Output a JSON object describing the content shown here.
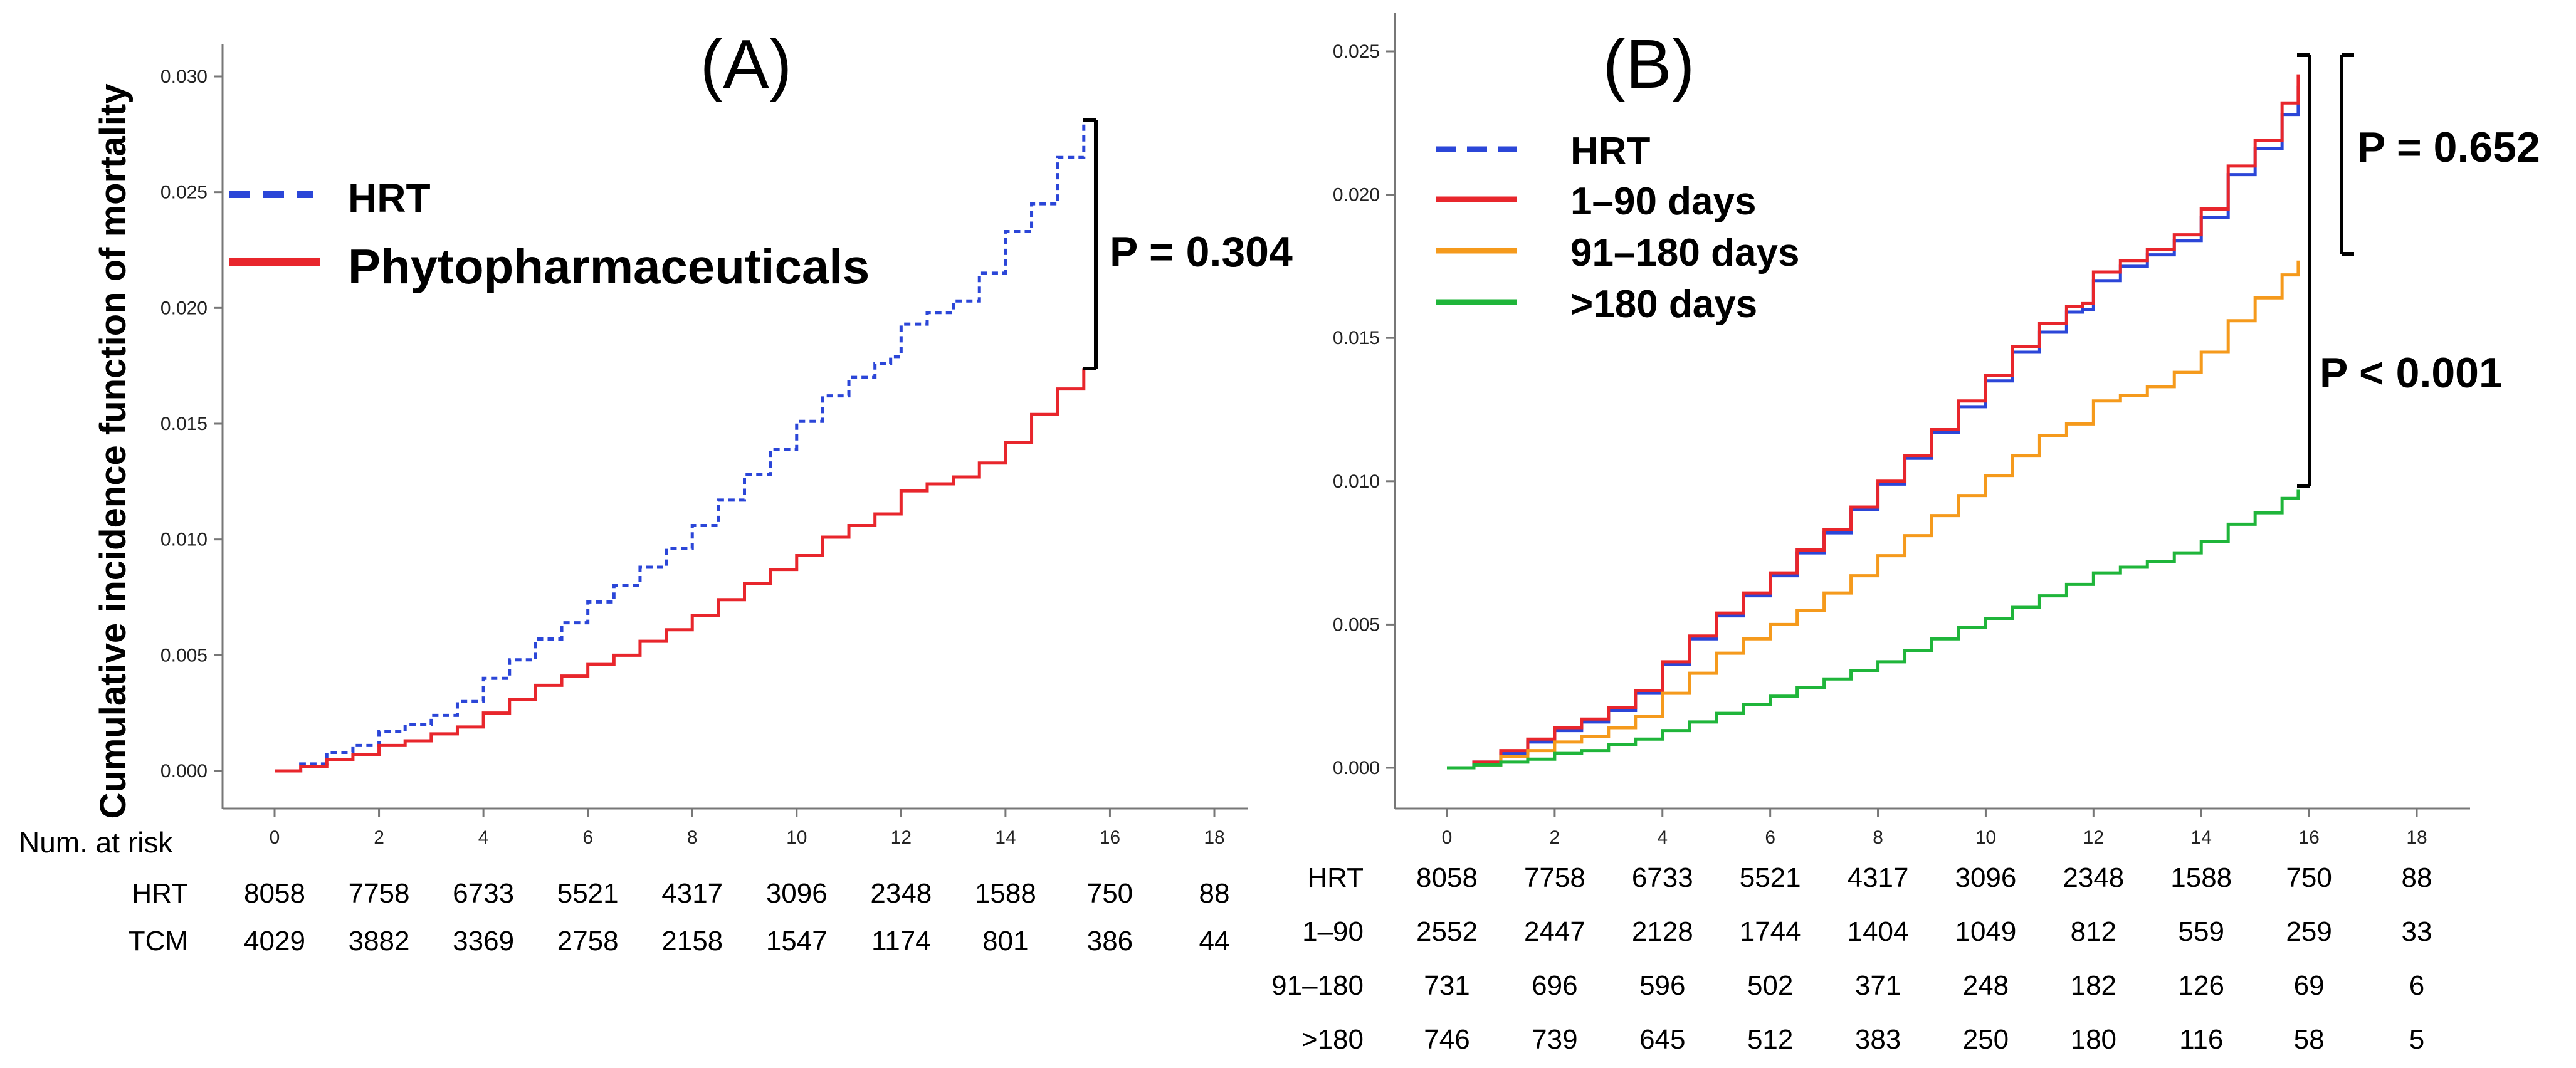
{
  "chart_data": [
    {
      "type": "line",
      "panel_label": "(A)",
      "title": "",
      "xlabel": "",
      "ylabel": "Cumulative incidence function of mortality",
      "xlim": [
        0,
        18
      ],
      "ylim": [
        0,
        0.03
      ],
      "x_ticks": [
        "0",
        "2",
        "4",
        "6",
        "8",
        "10",
        "12",
        "14",
        "16",
        "18"
      ],
      "y_ticks": [
        "0.000",
        "0.005",
        "0.010",
        "0.015",
        "0.020",
        "0.025",
        "0.030"
      ],
      "legend": {
        "position": "top-left"
      },
      "series": [
        {
          "name": "HRT",
          "color": "#2b46d8",
          "style": "dashed",
          "x": [
            0,
            0.5,
            1,
            1.5,
            2,
            2.5,
            3,
            3.5,
            4,
            4.5,
            5,
            5.5,
            6,
            6.5,
            7,
            7.5,
            8,
            8.5,
            9,
            9.5,
            10,
            10.5,
            11,
            11.5,
            11.8,
            12,
            12.5,
            13,
            13.5,
            14,
            14.5,
            15,
            15.5
          ],
          "y": [
            0,
            0.0003,
            0.0008,
            0.0011,
            0.0017,
            0.002,
            0.0024,
            0.003,
            0.004,
            0.0048,
            0.0057,
            0.0064,
            0.0073,
            0.008,
            0.0088,
            0.0096,
            0.0106,
            0.0117,
            0.0128,
            0.0139,
            0.0151,
            0.0162,
            0.017,
            0.0176,
            0.0179,
            0.0193,
            0.0198,
            0.0203,
            0.0215,
            0.0233,
            0.0245,
            0.0265,
            0.028
          ]
        },
        {
          "name": "Phytopharmaceuticals",
          "color": "#e8262c",
          "style": "solid",
          "x": [
            0,
            0.5,
            1,
            1.5,
            2,
            2.5,
            3,
            3.5,
            4,
            4.5,
            5,
            5.5,
            6,
            6.5,
            7,
            7.5,
            8,
            8.5,
            9,
            9.5,
            10,
            10.5,
            11,
            11.5,
            12,
            12.5,
            13,
            13.5,
            14,
            14.5,
            15,
            15.5
          ],
          "y": [
            0,
            0.0002,
            0.0005,
            0.0007,
            0.0011,
            0.0013,
            0.0016,
            0.0019,
            0.0025,
            0.0031,
            0.0037,
            0.0041,
            0.0046,
            0.005,
            0.0056,
            0.0061,
            0.0067,
            0.0074,
            0.0081,
            0.0087,
            0.0093,
            0.0101,
            0.0106,
            0.0111,
            0.0121,
            0.0124,
            0.0127,
            0.0133,
            0.0142,
            0.0154,
            0.0165,
            0.0174
          ]
        }
      ],
      "annotations": [
        {
          "text": "P = 0.304"
        }
      ],
      "risk_table": {
        "header": "Num. at risk",
        "rows": [
          {
            "label": "HRT",
            "values": [
              "8058",
              "7758",
              "6733",
              "5521",
              "4317",
              "3096",
              "2348",
              "1588",
              "750",
              "88"
            ]
          },
          {
            "label": "TCM",
            "values": [
              "4029",
              "3882",
              "3369",
              "2758",
              "2158",
              "1547",
              "1174",
              "801",
              "386",
              "44"
            ]
          }
        ]
      }
    },
    {
      "type": "line",
      "panel_label": "(B)",
      "title": "",
      "xlabel": "",
      "ylabel": "",
      "xlim": [
        0,
        18
      ],
      "ylim": [
        0,
        0.025
      ],
      "x_ticks": [
        "0",
        "2",
        "4",
        "6",
        "8",
        "10",
        "12",
        "14",
        "16",
        "18"
      ],
      "y_ticks": [
        "0.000",
        "0.005",
        "0.010",
        "0.015",
        "0.020",
        "0.025"
      ],
      "legend": {
        "position": "top-left"
      },
      "series": [
        {
          "name": "HRT",
          "color": "#2b46d8",
          "style": "solid",
          "x": [
            0,
            0.5,
            1,
            1.5,
            2,
            2.5,
            3,
            3.5,
            4,
            4.5,
            5,
            5.5,
            6,
            6.5,
            7,
            7.5,
            8,
            8.5,
            9,
            9.5,
            10,
            10.5,
            11,
            11.5,
            11.8,
            12,
            12.5,
            13,
            13.5,
            14,
            14.5,
            15,
            15.5,
            15.8
          ],
          "y": [
            0,
            0.0002,
            0.0005,
            0.0009,
            0.0013,
            0.0016,
            0.002,
            0.0026,
            0.0036,
            0.0045,
            0.0053,
            0.006,
            0.0067,
            0.0075,
            0.0082,
            0.009,
            0.0099,
            0.0108,
            0.0117,
            0.0126,
            0.0135,
            0.0145,
            0.0152,
            0.0159,
            0.016,
            0.017,
            0.0175,
            0.0179,
            0.0184,
            0.0192,
            0.0207,
            0.0216,
            0.0228,
            0.0238
          ]
        },
        {
          "name": "1–90 days",
          "color": "#e8262c",
          "style": "solid",
          "x": [
            0,
            0.5,
            1,
            1.5,
            2,
            2.5,
            3,
            3.5,
            4,
            4.5,
            5,
            5.5,
            6,
            6.5,
            7,
            7.5,
            8,
            8.5,
            9,
            9.5,
            10,
            10.5,
            11,
            11.5,
            11.8,
            12,
            12.5,
            13,
            13.5,
            14,
            14.5,
            15,
            15.5,
            15.8
          ],
          "y": [
            0,
            0.0002,
            0.0006,
            0.001,
            0.0014,
            0.0017,
            0.0021,
            0.0027,
            0.0037,
            0.0046,
            0.0054,
            0.0061,
            0.0068,
            0.0076,
            0.0083,
            0.0091,
            0.01,
            0.0109,
            0.0118,
            0.0128,
            0.0137,
            0.0147,
            0.0155,
            0.0161,
            0.0162,
            0.0173,
            0.0177,
            0.0181,
            0.0186,
            0.0195,
            0.021,
            0.0219,
            0.0232,
            0.0242
          ]
        },
        {
          "name": "91–180 days",
          "color": "#f59a1c",
          "style": "solid",
          "x": [
            0,
            0.5,
            1,
            1.5,
            2,
            2.5,
            3,
            3.5,
            4,
            4.5,
            5,
            5.5,
            6,
            6.5,
            7,
            7.5,
            8,
            8.5,
            9,
            9.5,
            10,
            10.5,
            11,
            11.5,
            12,
            12.5,
            13,
            13.5,
            14,
            14.5,
            15,
            15.5,
            15.8
          ],
          "y": [
            0,
            0.0001,
            0.0004,
            0.0006,
            0.0009,
            0.0011,
            0.0014,
            0.0018,
            0.0026,
            0.0033,
            0.004,
            0.0045,
            0.005,
            0.0055,
            0.0061,
            0.0067,
            0.0074,
            0.0081,
            0.0088,
            0.0095,
            0.0102,
            0.0109,
            0.0116,
            0.012,
            0.0128,
            0.013,
            0.0133,
            0.0138,
            0.0145,
            0.0156,
            0.0164,
            0.0172,
            0.0177
          ]
        },
        {
          "name": ">180 days",
          "color": "#1fb53a",
          "style": "solid",
          "x": [
            0,
            0.5,
            1,
            1.5,
            2,
            2.5,
            3,
            3.5,
            4,
            4.5,
            5,
            5.5,
            6,
            6.5,
            7,
            7.5,
            8,
            8.5,
            9,
            9.5,
            10,
            10.5,
            11,
            11.5,
            12,
            12.5,
            13,
            13.5,
            14,
            14.5,
            15,
            15.5,
            15.8
          ],
          "y": [
            0,
            0.0001,
            0.0002,
            0.0003,
            0.0005,
            0.0006,
            0.0008,
            0.001,
            0.0013,
            0.0016,
            0.0019,
            0.0022,
            0.0025,
            0.0028,
            0.0031,
            0.0034,
            0.0037,
            0.0041,
            0.0045,
            0.0049,
            0.0052,
            0.0056,
            0.006,
            0.0064,
            0.0068,
            0.007,
            0.0072,
            0.0075,
            0.0079,
            0.0085,
            0.0089,
            0.0094,
            0.0097
          ]
        }
      ],
      "annotations": [
        {
          "text": "P = 0.652"
        },
        {
          "text": "P < 0.001"
        }
      ],
      "risk_table": {
        "rows": [
          {
            "label": "HRT",
            "values": [
              "8058",
              "7758",
              "6733",
              "5521",
              "4317",
              "3096",
              "2348",
              "1588",
              "750",
              "88"
            ]
          },
          {
            "label": "1–90",
            "values": [
              "2552",
              "2447",
              "2128",
              "1744",
              "1404",
              "1049",
              "812",
              "559",
              "259",
              "33"
            ]
          },
          {
            "label": "91–180",
            "values": [
              "731",
              "696",
              "596",
              "502",
              "371",
              "248",
              "182",
              "126",
              "69",
              "6"
            ]
          },
          {
            "label": ">180",
            "values": [
              "746",
              "739",
              "645",
              "512",
              "383",
              "250",
              "180",
              "116",
              "58",
              "5"
            ]
          }
        ]
      }
    }
  ]
}
